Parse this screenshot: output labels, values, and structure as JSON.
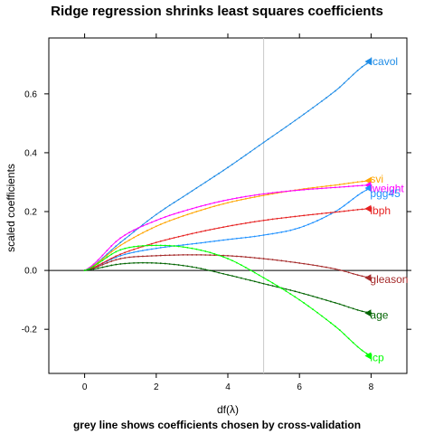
{
  "chart_data": {
    "type": "line",
    "title": "Ridge regression shrinks least squares coefficients",
    "xlabel": "df(λ)",
    "ylabel": "scaled coefficients",
    "subtitle": "grey line shows coefficients chosen by cross-validation",
    "xlim": [
      -1,
      9
    ],
    "ylim": [
      -0.35,
      0.79
    ],
    "xticks": [
      0,
      2,
      4,
      6,
      8
    ],
    "yticks": [
      -0.2,
      0.0,
      0.2,
      0.4,
      0.6
    ],
    "xtick_labels": [
      "0",
      "2",
      "4",
      "6",
      "8"
    ],
    "ytick_labels": [
      "-0.2",
      "0.0",
      "0.2",
      "0.4",
      "0.6"
    ],
    "reference_lines": {
      "horizontal_y": 0,
      "vertical_x": 5
    },
    "grid": false,
    "series": [
      {
        "name": "lcavol",
        "color": "#1f8ce6",
        "x": [
          0,
          1,
          2,
          3,
          4,
          5,
          6,
          7,
          8
        ],
        "values": [
          0,
          0.095,
          0.19,
          0.27,
          0.35,
          0.435,
          0.52,
          0.61,
          0.71
        ]
      },
      {
        "name": "svi",
        "color": "#ffa500",
        "x": [
          0,
          1,
          2,
          3,
          4,
          5,
          6,
          7,
          8
        ],
        "values": [
          0,
          0.085,
          0.15,
          0.195,
          0.23,
          0.255,
          0.275,
          0.29,
          0.305
        ]
      },
      {
        "name": "lweight",
        "color": "#ff00ff",
        "x": [
          0,
          1,
          2,
          3,
          4,
          5,
          6,
          7,
          8
        ],
        "values": [
          0,
          0.11,
          0.17,
          0.21,
          0.24,
          0.26,
          0.273,
          0.282,
          0.29
        ]
      },
      {
        "name": "pgg45",
        "color": "#1e90ff",
        "x": [
          0,
          1,
          2,
          3,
          4,
          5,
          6,
          7,
          8
        ],
        "values": [
          0,
          0.05,
          0.075,
          0.09,
          0.105,
          0.12,
          0.145,
          0.2,
          0.28
        ]
      },
      {
        "name": "lbph",
        "color": "#e62020",
        "x": [
          0,
          1,
          2,
          3,
          4,
          5,
          6,
          7,
          8
        ],
        "values": [
          0,
          0.055,
          0.095,
          0.125,
          0.15,
          0.17,
          0.185,
          0.198,
          0.21
        ]
      },
      {
        "name": "gleason",
        "color": "#a52a2a",
        "x": [
          0,
          1,
          2,
          3,
          4,
          5,
          6,
          7,
          8
        ],
        "values": [
          0,
          0.04,
          0.05,
          0.053,
          0.05,
          0.04,
          0.025,
          0.005,
          -0.025
        ]
      },
      {
        "name": "age",
        "color": "#006400",
        "x": [
          0,
          1,
          2,
          3,
          4,
          5,
          6,
          7,
          8
        ],
        "values": [
          0,
          0.022,
          0.025,
          0.012,
          -0.015,
          -0.045,
          -0.075,
          -0.11,
          -0.145
        ]
      },
      {
        "name": "lcp",
        "color": "#00ff00",
        "x": [
          0,
          1,
          2,
          3,
          4,
          5,
          6,
          7,
          8
        ],
        "values": [
          0,
          0.07,
          0.085,
          0.075,
          0.04,
          -0.025,
          -0.1,
          -0.19,
          -0.29
        ]
      }
    ]
  }
}
